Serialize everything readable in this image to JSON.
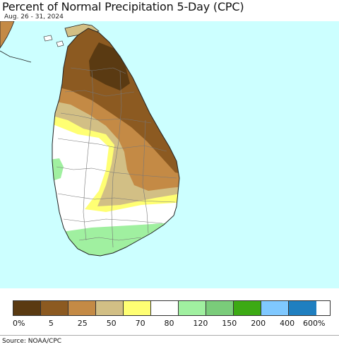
{
  "header": {
    "title": "Percent of Normal Precipitation 5-Day (CPC)",
    "subtitle": "Aug. 26 - 31, 2024"
  },
  "map": {
    "ocean_color": "#ccffff",
    "land_outline_color": "#222222",
    "region": "Sri Lanka"
  },
  "legend": {
    "categories": [
      {
        "color": "#5a3a12"
      },
      {
        "color": "#8c5a21"
      },
      {
        "color": "#c48a45"
      },
      {
        "color": "#d2bf85"
      },
      {
        "color": "#ffff73"
      },
      {
        "color": "#ffffff"
      },
      {
        "color": "#a0f0a0"
      },
      {
        "color": "#7acc7a"
      },
      {
        "color": "#3caa14"
      },
      {
        "color": "#7fc8ff"
      },
      {
        "color": "#1f7fc0"
      }
    ],
    "labels": [
      "0%",
      "5",
      "25",
      "50",
      "70",
      "80",
      "120",
      "150",
      "200",
      "400",
      "600%"
    ]
  },
  "footer": {
    "source": "Source: NOAA/CPC"
  }
}
